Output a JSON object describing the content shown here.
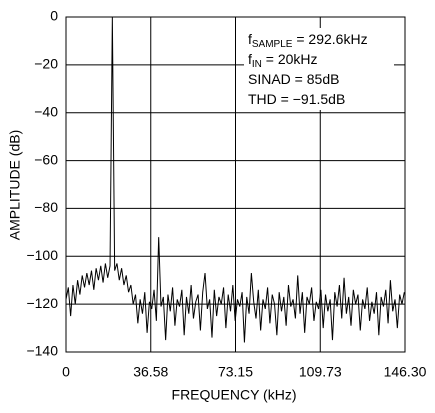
{
  "chart_data": {
    "type": "line",
    "xlabel": "FREQUENCY (kHz)",
    "ylabel": "AMPLITUDE (dB)",
    "annotations": [
      {
        "text": "f",
        "sub": "SAMPLE",
        "after": " = 292.6kHz"
      },
      {
        "text": "f",
        "sub": "IN",
        "after": " = 20kHz"
      },
      {
        "text": "SINAD = 85dB"
      },
      {
        "text": "THD = −91.5dB"
      }
    ],
    "xlim": [
      0,
      146.3
    ],
    "xticks": [
      0,
      36.58,
      73.15,
      109.73,
      {
        "value": 146.3,
        "label": "146.30"
      }
    ],
    "ylim": [
      -140,
      0
    ],
    "yticks": [
      0,
      {
        "value": -20,
        "label": "−20"
      },
      {
        "value": -40,
        "label": "−40"
      },
      {
        "value": -60,
        "label": "−60"
      },
      {
        "value": -80,
        "label": "−80"
      },
      {
        "value": -100,
        "label": "−100"
      },
      {
        "value": -120,
        "label": "−120"
      },
      {
        "value": -140,
        "label": "−140"
      }
    ],
    "grid": true,
    "color": "#000000",
    "x": [
      0,
      1,
      2,
      3,
      4,
      5,
      6,
      7,
      8,
      9,
      10,
      11,
      12,
      13,
      14,
      15,
      16,
      17,
      18,
      19,
      20,
      21,
      22,
      23,
      24,
      25,
      26,
      27,
      28,
      29,
      30,
      31,
      32,
      33,
      34,
      35,
      36,
      37,
      38,
      39,
      40,
      41,
      42,
      43,
      44,
      45,
      46,
      47,
      48,
      49,
      50,
      51,
      52,
      53,
      54,
      55,
      56,
      57,
      58,
      59,
      60,
      61,
      62,
      63,
      64,
      65,
      66,
      67,
      68,
      69,
      70,
      71,
      72,
      73,
      74,
      75,
      76,
      77,
      78,
      79,
      80,
      81,
      82,
      83,
      84,
      85,
      86,
      87,
      88,
      89,
      90,
      91,
      92,
      93,
      94,
      95,
      96,
      97,
      98,
      99,
      100,
      101,
      102,
      103,
      104,
      105,
      106,
      107,
      108,
      109,
      110,
      111,
      112,
      113,
      114,
      115,
      116,
      117,
      118,
      119,
      120,
      121,
      122,
      123,
      124,
      125,
      126,
      127,
      128,
      129,
      130,
      131,
      132,
      133,
      134,
      135,
      136,
      137,
      138,
      139,
      140,
      141,
      142,
      143,
      144,
      145,
      146
    ],
    "values": [
      -118,
      -113,
      -125,
      -112,
      -120,
      -110,
      -116,
      -108,
      -113,
      -107,
      -112,
      -106,
      -114,
      -105,
      -110,
      -104,
      -111,
      -103,
      -109,
      -104,
      0,
      -106,
      -103,
      -110,
      -105,
      -112,
      -108,
      -115,
      -112,
      -120,
      -116,
      -128,
      -118,
      -124,
      -115,
      -132,
      -119,
      -122,
      -114,
      -127,
      -92,
      -121,
      -117,
      -135,
      -116,
      -123,
      -113,
      -129,
      -118,
      -121,
      -114,
      -133,
      -117,
      -124,
      -112,
      -126,
      -119,
      -116,
      -131,
      -115,
      -107,
      -122,
      -118,
      -134,
      -114,
      -125,
      -117,
      -120,
      -113,
      -130,
      -116,
      -123,
      -112,
      -127,
      -118,
      -121,
      -115,
      -136,
      -117,
      -124,
      -107,
      -119,
      -126,
      -114,
      -131,
      -118,
      -122,
      -113,
      -128,
      -116,
      -120,
      -133,
      -115,
      -123,
      -117,
      -129,
      -112,
      -121,
      -118,
      -126,
      -108,
      -124,
      -115,
      -132,
      -117,
      -120,
      -113,
      -127,
      -119,
      -122,
      -114,
      -130,
      -116,
      -123,
      -118,
      -135,
      -115,
      -121,
      -112,
      -126,
      -109,
      -124,
      -117,
      -129,
      -114,
      -120,
      -116,
      -131,
      -118,
      -122,
      -113,
      -127,
      -119,
      -124,
      -115,
      -133,
      -117,
      -121,
      -114,
      -128,
      -110,
      -123,
      -118,
      -130,
      -116,
      -120,
      -115
    ]
  }
}
